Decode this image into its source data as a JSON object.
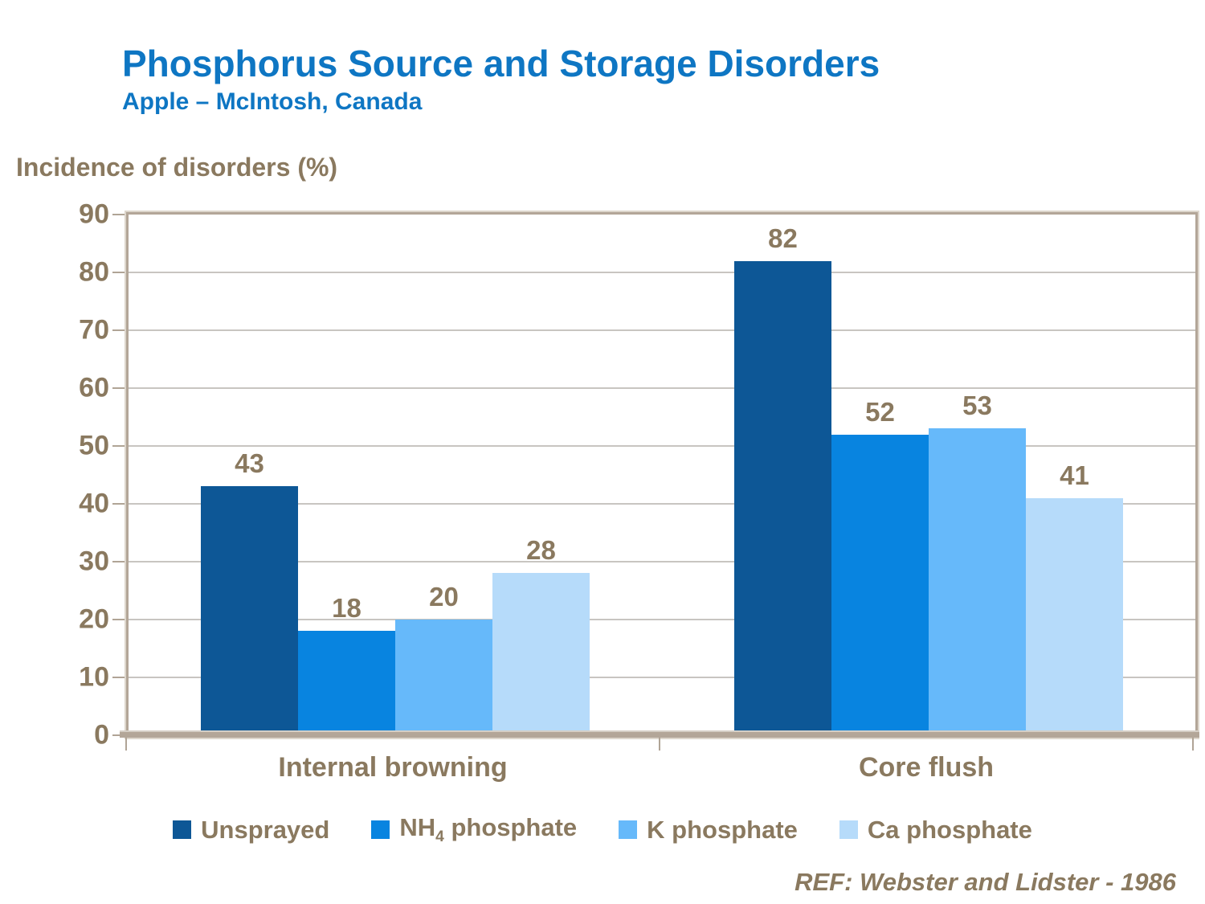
{
  "slide": {
    "title": "Phosphorus Source and Storage Disorders",
    "subtitle": "Apple – McIntosh, Canada",
    "footer": "REF: Webster and Lidster - 1986"
  },
  "chart_data": {
    "type": "bar",
    "title": "Phosphorus Source and Storage Disorders",
    "subtitle": "Apple – McIntosh, Canada",
    "axis_title": "Incidence of disorders (%)",
    "categories": [
      "Internal browning",
      "Core flush"
    ],
    "series": [
      {
        "name": "Unsprayed",
        "name_parts": {
          "base": "Unsprayed",
          "sub": "",
          "rest": ""
        },
        "color": "#0d5796",
        "values": [
          43,
          82
        ]
      },
      {
        "name": "NH4 phosphate",
        "name_parts": {
          "base": "NH",
          "sub": "4",
          "rest": " phosphate"
        },
        "color": "#0884e0",
        "values": [
          18,
          52
        ]
      },
      {
        "name": "K phosphate",
        "name_parts": {
          "base": "K phosphate",
          "sub": "",
          "rest": ""
        },
        "color": "#66b9fa",
        "values": [
          20,
          53
        ]
      },
      {
        "name": "Ca phosphate",
        "name_parts": {
          "base": "Ca phosphate",
          "sub": "",
          "rest": ""
        },
        "color": "#b6dbfa",
        "values": [
          28,
          41
        ]
      }
    ],
    "ylim": [
      0,
      90
    ],
    "ytick_step": 10,
    "grid": true,
    "data_labels": true,
    "legend_position": "bottom",
    "label_color": "#8a795f",
    "title_color": "#0e76c3",
    "axis_color": "#b3a698",
    "gridline_color": "#c8c5c1"
  }
}
